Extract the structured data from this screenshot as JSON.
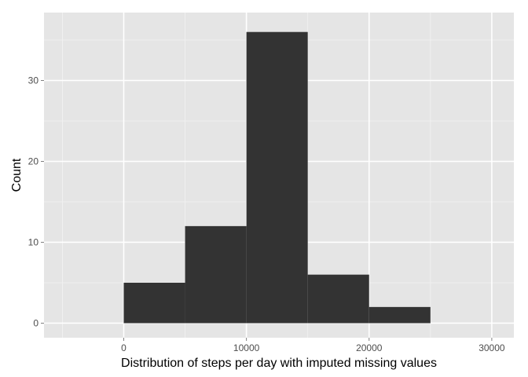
{
  "chart_data": {
    "type": "bar",
    "title": "",
    "xlabel": "Distribution of steps per day with imputed missing values",
    "ylabel": "Count",
    "xlim": [
      -6500,
      31800
    ],
    "ylim": [
      -1.8,
      38.4
    ],
    "x_ticks": [
      0,
      10000,
      20000,
      30000
    ],
    "x_tick_labels": [
      "0",
      "10000",
      "20000",
      "30000"
    ],
    "y_ticks": [
      0,
      10,
      20,
      30
    ],
    "y_tick_labels": [
      "0",
      "10",
      "20",
      "30"
    ],
    "bins": [
      {
        "x0": 0,
        "x1": 5000,
        "count": 5
      },
      {
        "x0": 5000,
        "x1": 10000,
        "count": 12
      },
      {
        "x0": 10000,
        "x1": 15000,
        "count": 36
      },
      {
        "x0": 15000,
        "x1": 20000,
        "count": 6
      },
      {
        "x0": 20000,
        "x1": 25000,
        "count": 2
      }
    ],
    "grid": true,
    "legend": "none",
    "colors": {
      "panel": "#e5e5e5",
      "grid_major": "#ffffff",
      "grid_minor": "#f2f2f2",
      "bar": "#333333",
      "tick": "#7f7f7f"
    }
  }
}
